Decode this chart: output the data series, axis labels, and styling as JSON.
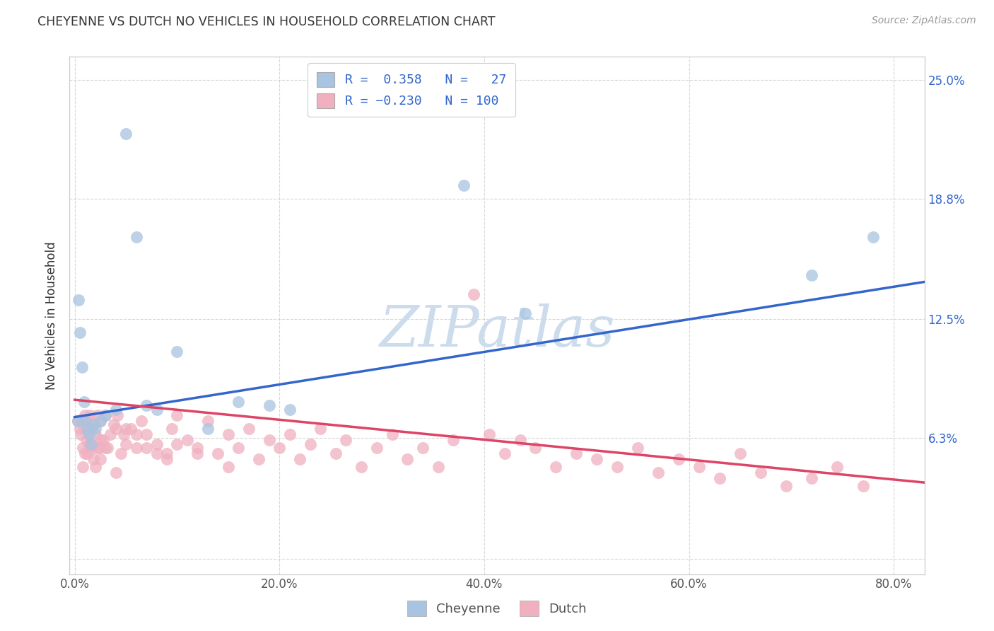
{
  "title": "CHEYENNE VS DUTCH NO VEHICLES IN HOUSEHOLD CORRELATION CHART",
  "source": "Source: ZipAtlas.com",
  "xlabel_ticks": [
    "0.0%",
    "20.0%",
    "40.0%",
    "60.0%",
    "80.0%"
  ],
  "xlabel_tick_vals": [
    0.0,
    0.2,
    0.4,
    0.6,
    0.8
  ],
  "right_ytick_vals": [
    0.063,
    0.125,
    0.188,
    0.25
  ],
  "right_ytick_labels": [
    "6.3%",
    "12.5%",
    "18.8%",
    "25.0%"
  ],
  "xmin": -0.005,
  "xmax": 0.83,
  "ymin": -0.008,
  "ymax": 0.262,
  "ylabel": "No Vehicles in Household",
  "cheyenne_color": "#a8c4e0",
  "dutch_color": "#f0b0c0",
  "cheyenne_edge_color": "#7aaad0",
  "dutch_edge_color": "#e090a8",
  "cheyenne_line_color": "#3366cc",
  "dutch_line_color": "#dd4466",
  "cheyenne_R": 0.358,
  "cheyenne_N": 27,
  "dutch_R": -0.23,
  "dutch_N": 100,
  "legend_text_color": "#3366cc",
  "background_color": "#ffffff",
  "grid_color": "#cccccc",
  "watermark_color": "#cddcec",
  "cheyenne_x": [
    0.003,
    0.004,
    0.005,
    0.007,
    0.009,
    0.01,
    0.012,
    0.014,
    0.016,
    0.018,
    0.02,
    0.025,
    0.03,
    0.04,
    0.05,
    0.06,
    0.07,
    0.08,
    0.1,
    0.13,
    0.16,
    0.19,
    0.21,
    0.38,
    0.44,
    0.72,
    0.78
  ],
  "cheyenne_y": [
    0.072,
    0.135,
    0.118,
    0.1,
    0.082,
    0.072,
    0.068,
    0.065,
    0.06,
    0.07,
    0.068,
    0.072,
    0.075,
    0.078,
    0.222,
    0.168,
    0.08,
    0.078,
    0.108,
    0.068,
    0.082,
    0.08,
    0.078,
    0.195,
    0.128,
    0.148,
    0.168
  ],
  "dutch_x": [
    0.003,
    0.005,
    0.006,
    0.007,
    0.008,
    0.009,
    0.01,
    0.011,
    0.012,
    0.013,
    0.014,
    0.015,
    0.016,
    0.017,
    0.018,
    0.02,
    0.022,
    0.024,
    0.025,
    0.028,
    0.03,
    0.032,
    0.035,
    0.038,
    0.04,
    0.042,
    0.045,
    0.048,
    0.05,
    0.055,
    0.06,
    0.065,
    0.07,
    0.08,
    0.09,
    0.095,
    0.1,
    0.11,
    0.12,
    0.13,
    0.14,
    0.15,
    0.16,
    0.17,
    0.18,
    0.19,
    0.2,
    0.21,
    0.22,
    0.23,
    0.24,
    0.255,
    0.265,
    0.28,
    0.295,
    0.31,
    0.325,
    0.34,
    0.355,
    0.37,
    0.39,
    0.405,
    0.42,
    0.435,
    0.45,
    0.47,
    0.49,
    0.51,
    0.53,
    0.55,
    0.57,
    0.59,
    0.61,
    0.63,
    0.65,
    0.67,
    0.695,
    0.72,
    0.745,
    0.77,
    0.008,
    0.012,
    0.015,
    0.018,
    0.022,
    0.025,
    0.01,
    0.014,
    0.02,
    0.025,
    0.03,
    0.04,
    0.05,
    0.06,
    0.07,
    0.08,
    0.09,
    0.1,
    0.12,
    0.15
  ],
  "dutch_y": [
    0.072,
    0.068,
    0.065,
    0.072,
    0.058,
    0.068,
    0.075,
    0.062,
    0.068,
    0.072,
    0.065,
    0.075,
    0.068,
    0.058,
    0.07,
    0.065,
    0.075,
    0.058,
    0.072,
    0.062,
    0.075,
    0.058,
    0.065,
    0.07,
    0.068,
    0.075,
    0.055,
    0.065,
    0.06,
    0.068,
    0.058,
    0.072,
    0.065,
    0.06,
    0.055,
    0.068,
    0.075,
    0.062,
    0.058,
    0.072,
    0.055,
    0.065,
    0.058,
    0.068,
    0.052,
    0.062,
    0.058,
    0.065,
    0.052,
    0.06,
    0.068,
    0.055,
    0.062,
    0.048,
    0.058,
    0.065,
    0.052,
    0.058,
    0.048,
    0.062,
    0.138,
    0.065,
    0.055,
    0.062,
    0.058,
    0.048,
    0.055,
    0.052,
    0.048,
    0.058,
    0.045,
    0.052,
    0.048,
    0.042,
    0.055,
    0.045,
    0.038,
    0.042,
    0.048,
    0.038,
    0.048,
    0.055,
    0.06,
    0.052,
    0.058,
    0.062,
    0.055,
    0.06,
    0.048,
    0.052,
    0.058,
    0.045,
    0.068,
    0.065,
    0.058,
    0.055,
    0.052,
    0.06,
    0.055,
    0.048
  ]
}
